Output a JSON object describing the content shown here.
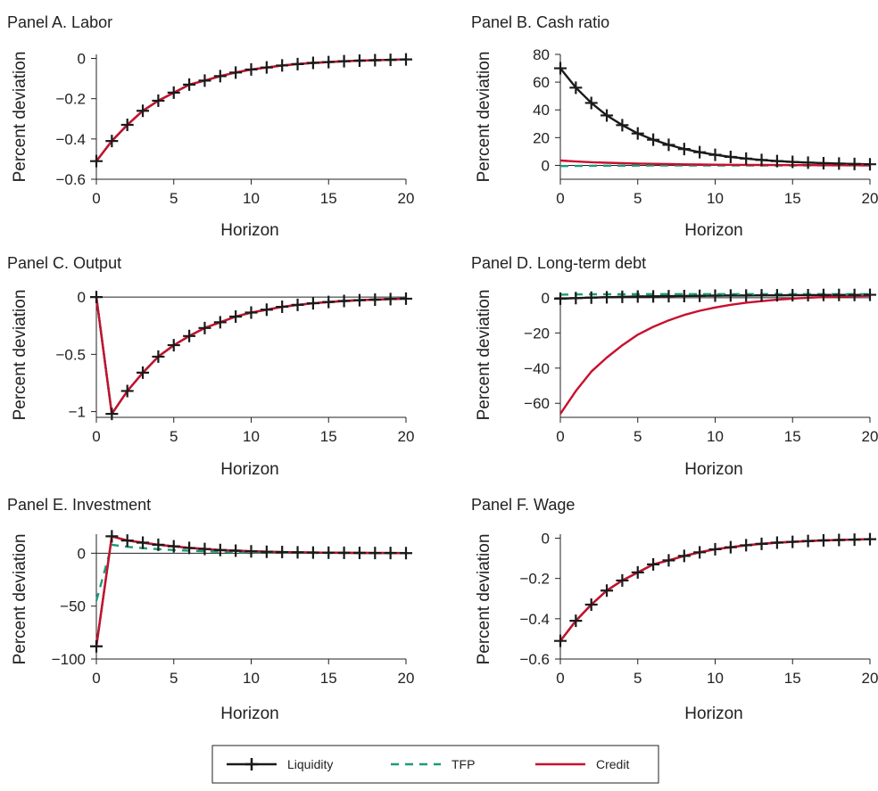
{
  "colors": {
    "liquidity": "#1a1a1a",
    "tfp": "#1a9c7a",
    "credit": "#c8102e",
    "axis": "#222222"
  },
  "legend": {
    "placement": "bottom-center",
    "items": [
      {
        "label": "Liquidity",
        "series": "liquidity",
        "style": "solid-with-plus-markers"
      },
      {
        "label": "TFP",
        "series": "tfp",
        "style": "dashed"
      },
      {
        "label": "Credit",
        "series": "credit",
        "style": "solid"
      }
    ]
  },
  "chart_data": [
    {
      "panel": "A",
      "type": "line",
      "title": "Panel A. Labor",
      "xlabel": "Horizon",
      "ylabel": "Percent deviation",
      "x": [
        0,
        1,
        2,
        3,
        4,
        5,
        6,
        7,
        8,
        9,
        10,
        11,
        12,
        13,
        14,
        15,
        16,
        17,
        18,
        19,
        20
      ],
      "xlim": [
        0,
        20
      ],
      "ylim": [
        -0.6,
        0.02
      ],
      "xticks": [
        0,
        5,
        10,
        15,
        20
      ],
      "xtick_labels": [
        "0",
        "5",
        "10",
        "15",
        "20"
      ],
      "yticks": [
        0,
        -0.2,
        -0.4,
        -0.6
      ],
      "ytick_labels": [
        "0",
        "−0.2",
        "−0.4",
        "−0.6"
      ],
      "zero_line": false,
      "series": [
        {
          "key": "liquidity",
          "values": [
            -0.51,
            -0.41,
            -0.33,
            -0.26,
            -0.21,
            -0.17,
            -0.13,
            -0.11,
            -0.088,
            -0.07,
            -0.055,
            -0.045,
            -0.035,
            -0.028,
            -0.022,
            -0.018,
            -0.014,
            -0.011,
            -0.009,
            -0.007,
            -0.005
          ]
        },
        {
          "key": "tfp",
          "values": [
            -0.51,
            -0.41,
            -0.33,
            -0.26,
            -0.21,
            -0.17,
            -0.13,
            -0.11,
            -0.088,
            -0.07,
            -0.055,
            -0.045,
            -0.035,
            -0.028,
            -0.022,
            -0.018,
            -0.014,
            -0.011,
            -0.009,
            -0.007,
            -0.005
          ]
        },
        {
          "key": "credit",
          "values": [
            -0.51,
            -0.41,
            -0.33,
            -0.26,
            -0.21,
            -0.17,
            -0.13,
            -0.11,
            -0.088,
            -0.07,
            -0.055,
            -0.045,
            -0.035,
            -0.028,
            -0.022,
            -0.018,
            -0.014,
            -0.011,
            -0.009,
            -0.007,
            -0.005
          ]
        }
      ]
    },
    {
      "panel": "B",
      "type": "line",
      "title": "Panel B. Cash ratio",
      "xlabel": "Horizon",
      "ylabel": "Percent deviation",
      "x": [
        0,
        1,
        2,
        3,
        4,
        5,
        6,
        7,
        8,
        9,
        10,
        11,
        12,
        13,
        14,
        15,
        16,
        17,
        18,
        19,
        20
      ],
      "xlim": [
        0,
        20
      ],
      "ylim": [
        -10,
        80
      ],
      "xticks": [
        0,
        5,
        10,
        15,
        20
      ],
      "xtick_labels": [
        "0",
        "5",
        "10",
        "15",
        "20"
      ],
      "yticks": [
        0,
        20,
        40,
        60,
        80
      ],
      "ytick_labels": [
        "0",
        "20",
        "40",
        "60",
        "80"
      ],
      "zero_line": true,
      "series": [
        {
          "key": "liquidity",
          "values": [
            70,
            56,
            45,
            36,
            29,
            23,
            18.5,
            14.8,
            11.8,
            9.5,
            7.6,
            6.1,
            4.9,
            3.9,
            3.1,
            2.5,
            2,
            1.6,
            1.3,
            1,
            0.8
          ]
        },
        {
          "key": "tfp",
          "values": [
            -0.5,
            -0.4,
            -0.3,
            -0.25,
            -0.2,
            -0.16,
            -0.13,
            -0.1,
            -0.08,
            -0.06,
            -0.05,
            -0.04,
            -0.03,
            -0.02,
            -0.02,
            -0.01,
            -0.01,
            0,
            0,
            0,
            0
          ]
        },
        {
          "key": "credit",
          "values": [
            3.5,
            2.8,
            2.3,
            1.9,
            1.6,
            1.3,
            1.1,
            0.9,
            0.75,
            0.6,
            0.5,
            0.4,
            0.33,
            0.27,
            0.22,
            0.18,
            0.15,
            0.12,
            0.1,
            0.08,
            0.06
          ]
        }
      ]
    },
    {
      "panel": "C",
      "type": "line",
      "title": "Panel C. Output",
      "xlabel": "Horizon",
      "ylabel": "Percent deviation",
      "x": [
        0,
        1,
        2,
        3,
        4,
        5,
        6,
        7,
        8,
        9,
        10,
        11,
        12,
        13,
        14,
        15,
        16,
        17,
        18,
        19,
        20
      ],
      "xlim": [
        0,
        20
      ],
      "ylim": [
        -1.05,
        0.04
      ],
      "xticks": [
        0,
        5,
        10,
        15,
        20
      ],
      "xtick_labels": [
        "0",
        "5",
        "10",
        "15",
        "20"
      ],
      "yticks": [
        0,
        -0.5,
        -1
      ],
      "ytick_labels": [
        "0",
        "−0.5",
        "−1"
      ],
      "zero_line": true,
      "series": [
        {
          "key": "liquidity",
          "values": [
            0,
            -1.02,
            -0.82,
            -0.66,
            -0.52,
            -0.42,
            -0.34,
            -0.27,
            -0.22,
            -0.17,
            -0.135,
            -0.11,
            -0.085,
            -0.068,
            -0.054,
            -0.043,
            -0.034,
            -0.027,
            -0.022,
            -0.017,
            -0.014
          ]
        },
        {
          "key": "tfp",
          "values": [
            0,
            -1.02,
            -0.82,
            -0.66,
            -0.52,
            -0.42,
            -0.34,
            -0.27,
            -0.22,
            -0.17,
            -0.135,
            -0.11,
            -0.085,
            -0.068,
            -0.054,
            -0.043,
            -0.034,
            -0.027,
            -0.022,
            -0.017,
            -0.014
          ]
        },
        {
          "key": "credit",
          "values": [
            0,
            -1.02,
            -0.82,
            -0.66,
            -0.52,
            -0.42,
            -0.34,
            -0.27,
            -0.22,
            -0.17,
            -0.135,
            -0.11,
            -0.085,
            -0.068,
            -0.054,
            -0.043,
            -0.034,
            -0.027,
            -0.022,
            -0.017,
            -0.014
          ]
        }
      ]
    },
    {
      "panel": "D",
      "type": "line",
      "title": "Panel D. Long-term debt",
      "xlabel": "Horizon",
      "ylabel": "Percent deviation",
      "x": [
        0,
        1,
        2,
        3,
        4,
        5,
        6,
        7,
        8,
        9,
        10,
        11,
        12,
        13,
        14,
        15,
        16,
        17,
        18,
        19,
        20
      ],
      "xlim": [
        0,
        20
      ],
      "ylim": [
        -68,
        3
      ],
      "xticks": [
        0,
        5,
        10,
        15,
        20
      ],
      "xtick_labels": [
        "0",
        "5",
        "10",
        "15",
        "20"
      ],
      "yticks": [
        0,
        -20,
        -40,
        -60
      ],
      "ytick_labels": [
        "0",
        "−20",
        "−40",
        "−60"
      ],
      "zero_line": true,
      "series": [
        {
          "key": "liquidity",
          "values": [
            -0.5,
            -0.2,
            0.1,
            0.3,
            0.5,
            0.7,
            0.8,
            0.9,
            1,
            1.1,
            1.2,
            1.3,
            1.3,
            1.4,
            1.4,
            1.5,
            1.5,
            1.6,
            1.6,
            1.6,
            1.7
          ]
        },
        {
          "key": "tfp",
          "values": [
            1.8,
            1.9,
            2,
            2,
            2,
            2.1,
            2.1,
            2.1,
            2.1,
            2.1,
            2.1,
            2.1,
            2.1,
            2.1,
            2.1,
            2.1,
            2.1,
            2.1,
            2.1,
            2.1,
            2.1
          ]
        },
        {
          "key": "credit",
          "values": [
            -66,
            -53,
            -42,
            -34,
            -27,
            -21,
            -16.5,
            -12.8,
            -9.8,
            -7.4,
            -5.5,
            -4,
            -2.8,
            -1.9,
            -1.1,
            -0.5,
            0,
            0.4,
            0.7,
            0.9,
            1.1
          ]
        }
      ]
    },
    {
      "panel": "E",
      "type": "line",
      "title": "Panel E. Investment",
      "xlabel": "Horizon",
      "ylabel": "Percent deviation",
      "x": [
        0,
        1,
        2,
        3,
        4,
        5,
        6,
        7,
        8,
        9,
        10,
        11,
        12,
        13,
        14,
        15,
        16,
        17,
        18,
        19,
        20
      ],
      "xlim": [
        0,
        20
      ],
      "ylim": [
        -100,
        18
      ],
      "xticks": [
        0,
        5,
        10,
        15,
        20
      ],
      "xtick_labels": [
        "0",
        "5",
        "10",
        "15",
        "20"
      ],
      "yticks": [
        0,
        -50,
        -100
      ],
      "ytick_labels": [
        "0",
        "−50",
        "−100"
      ],
      "zero_line": true,
      "series": [
        {
          "key": "liquidity",
          "values": [
            -88,
            16,
            12,
            10,
            8,
            6.5,
            5,
            4,
            3,
            2.4,
            1.8,
            1.4,
            1.1,
            0.8,
            0.6,
            0.5,
            0.4,
            0.3,
            0.2,
            0.2,
            0.1
          ]
        },
        {
          "key": "tfp",
          "values": [
            -45,
            8,
            6,
            4.8,
            3.8,
            3,
            2.3,
            1.8,
            1.4,
            1.1,
            0.85,
            0.65,
            0.5,
            0.4,
            0.3,
            0.23,
            0.18,
            0.14,
            0.1,
            0.08,
            0.06
          ]
        },
        {
          "key": "credit",
          "values": [
            -88,
            16,
            12,
            10,
            8,
            6.5,
            5,
            4,
            3,
            2.4,
            1.8,
            1.4,
            1.1,
            0.8,
            0.6,
            0.5,
            0.4,
            0.3,
            0.2,
            0.2,
            0.1
          ]
        }
      ]
    },
    {
      "panel": "F",
      "type": "line",
      "title": "Panel F. Wage",
      "xlabel": "Horizon",
      "ylabel": "Percent deviation",
      "x": [
        0,
        1,
        2,
        3,
        4,
        5,
        6,
        7,
        8,
        9,
        10,
        11,
        12,
        13,
        14,
        15,
        16,
        17,
        18,
        19,
        20
      ],
      "xlim": [
        0,
        20
      ],
      "ylim": [
        -0.6,
        0.02
      ],
      "xticks": [
        0,
        5,
        10,
        15,
        20
      ],
      "xtick_labels": [
        "0",
        "5",
        "10",
        "15",
        "20"
      ],
      "yticks": [
        0,
        -0.2,
        -0.4,
        -0.6
      ],
      "ytick_labels": [
        "0",
        "−0.2",
        "−0.4",
        "−0.6"
      ],
      "zero_line": false,
      "series": [
        {
          "key": "liquidity",
          "values": [
            -0.51,
            -0.41,
            -0.33,
            -0.26,
            -0.21,
            -0.17,
            -0.13,
            -0.11,
            -0.088,
            -0.07,
            -0.055,
            -0.045,
            -0.035,
            -0.028,
            -0.022,
            -0.018,
            -0.014,
            -0.011,
            -0.009,
            -0.007,
            -0.005
          ]
        },
        {
          "key": "tfp",
          "values": [
            -0.51,
            -0.41,
            -0.33,
            -0.26,
            -0.21,
            -0.17,
            -0.13,
            -0.11,
            -0.088,
            -0.07,
            -0.055,
            -0.045,
            -0.035,
            -0.028,
            -0.022,
            -0.018,
            -0.014,
            -0.011,
            -0.009,
            -0.007,
            -0.005
          ]
        },
        {
          "key": "credit",
          "values": [
            -0.51,
            -0.41,
            -0.33,
            -0.26,
            -0.21,
            -0.17,
            -0.13,
            -0.11,
            -0.088,
            -0.07,
            -0.055,
            -0.045,
            -0.035,
            -0.028,
            -0.022,
            -0.018,
            -0.014,
            -0.011,
            -0.009,
            -0.007,
            -0.005
          ]
        }
      ]
    }
  ]
}
